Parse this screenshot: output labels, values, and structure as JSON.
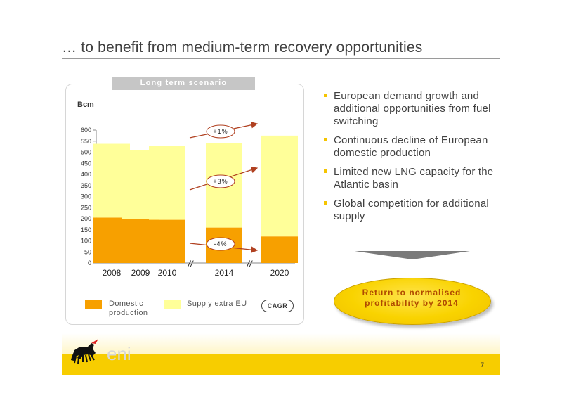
{
  "slide": {
    "title": "… to benefit from medium-term recovery opportunities",
    "page_number": "7",
    "logo_text": "eni"
  },
  "panel": {
    "tab_label": "Long term scenario",
    "unit": "Bcm"
  },
  "chart_data": {
    "type": "bar",
    "stacked": true,
    "categories": [
      "2008",
      "2009",
      "2010",
      "2014",
      "2020"
    ],
    "series": [
      {
        "name": "Domestic production",
        "values": [
          205,
          200,
          195,
          160,
          120
        ],
        "color": "#f7a000"
      },
      {
        "name": "Supply extra EU",
        "values": [
          333,
          310,
          335,
          380,
          455
        ],
        "color": "#ffff99"
      }
    ],
    "ylim": [
      0,
      600
    ],
    "yticks": [
      0,
      50,
      100,
      150,
      200,
      250,
      300,
      350,
      400,
      450,
      500,
      550,
      600
    ],
    "axis_breaks": [
      "//",
      "//"
    ],
    "annotations": [
      {
        "label": "+1%",
        "refers_to": "total"
      },
      {
        "label": "+3%",
        "refers_to": "Supply extra EU"
      },
      {
        "label": "-4%",
        "refers_to": "Domestic production"
      }
    ],
    "grid": false
  },
  "legend": {
    "domestic_label": "Domestic production",
    "extra_label": "Supply extra EU",
    "cagr_label": "CAGR"
  },
  "bullets": [
    "European demand growth and additional opportunities from fuel switching",
    "Continuous decline of European domestic production",
    "Limited new LNG capacity for the Atlantic basin",
    "Global competition for additional supply"
  ],
  "conclusion": {
    "line1": "Return to normalised",
    "line2": "profitability by 2014"
  },
  "colors": {
    "domestic": "#f7a000",
    "extra": "#ffff99",
    "accent": "#f7cd00",
    "conclusion_text": "#b04a00",
    "arrow": "#b04020"
  }
}
